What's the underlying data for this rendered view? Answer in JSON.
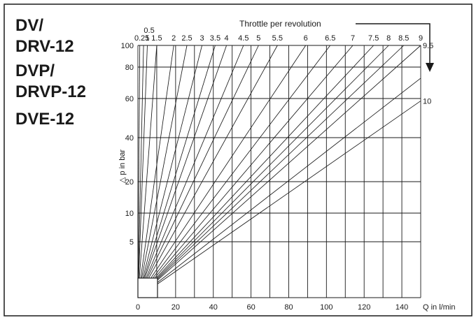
{
  "models": [
    "DV/",
    "DRV-12",
    "DVP/",
    "DRVP-12",
    "DVE-12"
  ],
  "chart_data": {
    "type": "line",
    "title": "",
    "top_label": "Throttle per revolution",
    "xlabel": "Q in l/min",
    "ylabel": "△ p in bar",
    "xlim": [
      0,
      150
    ],
    "ylim": [
      0,
      100
    ],
    "x_ticks": [
      0,
      20,
      40,
      60,
      80,
      100,
      120,
      140
    ],
    "y_ticks": [
      5,
      10,
      20,
      40,
      60,
      80,
      100
    ],
    "grid": true,
    "series": [
      {
        "name": "0.25",
        "points": [
          [
            0,
            0
          ],
          [
            1,
            100
          ]
        ]
      },
      {
        "name": "0.5",
        "points": [
          [
            0,
            0
          ],
          [
            3,
            100
          ]
        ]
      },
      {
        "name": "1",
        "points": [
          [
            0,
            0
          ],
          [
            5,
            100
          ]
        ]
      },
      {
        "name": "1.5",
        "points": [
          [
            0,
            0
          ],
          [
            10,
            100
          ]
        ]
      },
      {
        "name": "2",
        "points": [
          [
            0,
            0
          ],
          [
            19,
            100
          ]
        ]
      },
      {
        "name": "2.5",
        "points": [
          [
            0,
            0
          ],
          [
            26,
            100
          ]
        ]
      },
      {
        "name": "3",
        "points": [
          [
            0,
            0
          ],
          [
            34,
            100
          ]
        ]
      },
      {
        "name": "3.5",
        "points": [
          [
            0,
            0
          ],
          [
            41,
            100
          ]
        ]
      },
      {
        "name": "4",
        "points": [
          [
            0,
            0
          ],
          [
            47,
            100
          ]
        ]
      },
      {
        "name": "4.5",
        "points": [
          [
            0,
            0
          ],
          [
            56,
            100
          ]
        ]
      },
      {
        "name": "5",
        "points": [
          [
            0,
            0
          ],
          [
            64,
            100
          ]
        ]
      },
      {
        "name": "5.5",
        "points": [
          [
            0,
            0
          ],
          [
            74,
            100
          ]
        ]
      },
      {
        "name": "6",
        "points": [
          [
            0,
            0
          ],
          [
            89,
            100
          ]
        ]
      },
      {
        "name": "6.5",
        "points": [
          [
            0,
            0
          ],
          [
            102,
            100
          ]
        ]
      },
      {
        "name": "7",
        "points": [
          [
            0,
            0
          ],
          [
            114,
            100
          ]
        ]
      },
      {
        "name": "7.5",
        "points": [
          [
            0,
            0
          ],
          [
            125,
            100
          ]
        ]
      },
      {
        "name": "8",
        "points": [
          [
            0,
            0
          ],
          [
            133,
            100
          ]
        ]
      },
      {
        "name": "8.5",
        "points": [
          [
            0,
            0
          ],
          [
            141,
            100
          ]
        ]
      },
      {
        "name": "9",
        "points": [
          [
            0,
            0
          ],
          [
            150,
            100
          ]
        ]
      },
      {
        "name": "9.5",
        "points": [
          [
            0,
            0
          ],
          [
            150,
            87
          ]
        ]
      },
      {
        "name": "10",
        "points": [
          [
            0,
            0
          ],
          [
            150,
            78
          ]
        ]
      }
    ]
  }
}
